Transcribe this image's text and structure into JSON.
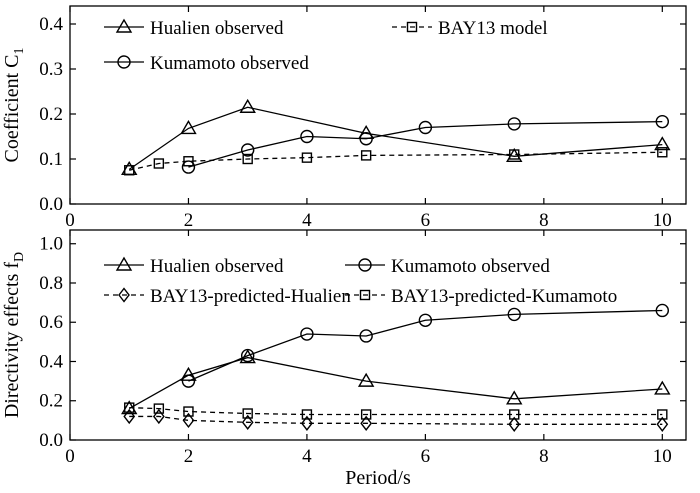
{
  "chart_data": [
    {
      "type": "line",
      "xlabel": "",
      "ylabel": "Coefficient C",
      "ylabel_sub": "1",
      "xlim": [
        0,
        10.4
      ],
      "ylim": [
        0,
        0.44
      ],
      "x_ticks": [
        0,
        2,
        4,
        6,
        8,
        10
      ],
      "y_ticks": [
        0,
        0.1,
        0.2,
        0.3,
        0.4
      ],
      "x_tick_labels": [
        "0",
        "2",
        "4",
        "6",
        "8",
        "10"
      ],
      "y_tick_labels": [
        "0.0",
        "0.1",
        "0.2",
        "0.3",
        "0.4"
      ],
      "legend_position": "top",
      "series": [
        {
          "name": "Hualien observed",
          "marker": "triangle",
          "dash": "solid",
          "x": [
            1,
            2,
            3,
            5,
            7.5,
            10
          ],
          "y": [
            0.077,
            0.168,
            0.215,
            0.157,
            0.106,
            0.132
          ]
        },
        {
          "name": "BAY13 model",
          "marker": "square",
          "dash": "dashed",
          "x": [
            1,
            1.5,
            2,
            3,
            4,
            5,
            7.5,
            10
          ],
          "y": [
            0.075,
            0.09,
            0.095,
            0.1,
            0.103,
            0.108,
            0.11,
            0.115
          ]
        },
        {
          "name": "Kumamoto observed",
          "marker": "circle",
          "dash": "solid",
          "x": [
            2,
            3,
            4,
            5,
            6,
            7.5,
            10
          ],
          "y": [
            0.082,
            0.12,
            0.15,
            0.145,
            0.17,
            0.178,
            0.183
          ]
        }
      ]
    },
    {
      "type": "line",
      "xlabel": "Period/s",
      "ylabel": "Directivity effects f",
      "ylabel_sub": "D",
      "xlim": [
        0,
        10.4
      ],
      "ylim": [
        0,
        1.07
      ],
      "x_ticks": [
        0,
        2,
        4,
        6,
        8,
        10
      ],
      "y_ticks": [
        0,
        0.2,
        0.4,
        0.6,
        0.8,
        1.0
      ],
      "x_tick_labels": [
        "0",
        "2",
        "4",
        "6",
        "8",
        "10"
      ],
      "y_tick_labels": [
        "0.0",
        "0.2",
        "0.4",
        "0.6",
        "0.8",
        "1.0"
      ],
      "legend_position": "top",
      "series": [
        {
          "name": "Hualien observed",
          "marker": "triangle",
          "dash": "solid",
          "x": [
            1,
            2,
            3,
            5,
            7.5,
            10
          ],
          "y": [
            0.16,
            0.33,
            0.42,
            0.3,
            0.21,
            0.26
          ]
        },
        {
          "name": "BAY13-predicted-Hualien",
          "marker": "diamond",
          "dash": "dashed",
          "x": [
            1,
            1.5,
            2,
            3,
            4,
            5,
            7.5,
            10
          ],
          "y": [
            0.12,
            0.12,
            0.1,
            0.09,
            0.085,
            0.085,
            0.08,
            0.08
          ]
        },
        {
          "name": "Kumamoto observed",
          "marker": "circle",
          "dash": "solid",
          "x": [
            2,
            3,
            4,
            5,
            6,
            7.5,
            10
          ],
          "y": [
            0.3,
            0.43,
            0.54,
            0.53,
            0.61,
            0.64,
            0.66
          ]
        },
        {
          "name": "BAY13-predicted-Kumamoto",
          "marker": "square",
          "dash": "dashed",
          "x": [
            1,
            1.5,
            2,
            3,
            4,
            5,
            7.5,
            10
          ],
          "y": [
            0.165,
            0.16,
            0.145,
            0.135,
            0.13,
            0.13,
            0.13,
            0.13
          ]
        }
      ]
    }
  ]
}
